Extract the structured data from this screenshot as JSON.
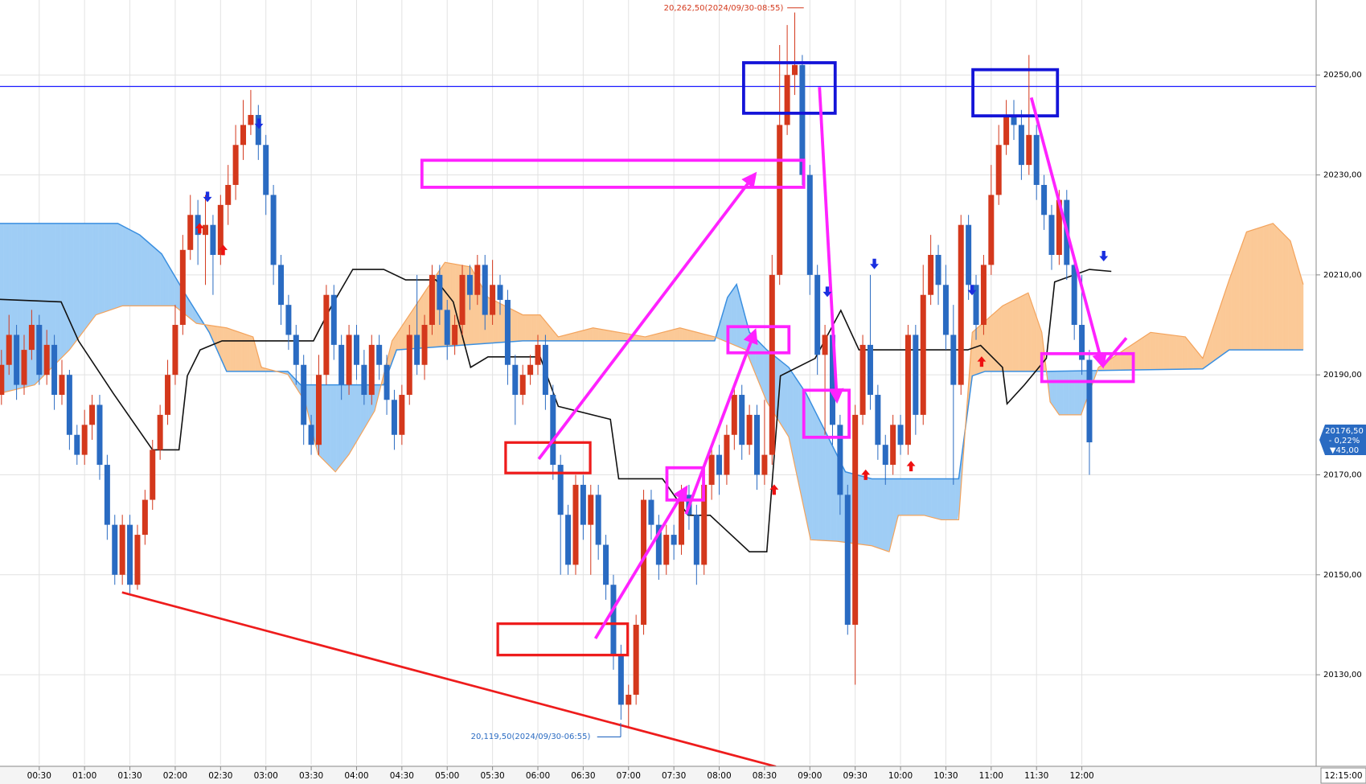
{
  "chart_data": {
    "type": "candlestick",
    "categories": [
      null,
      null,
      null,
      null,
      null,
      "00:30",
      null,
      null,
      null,
      null,
      null,
      "01:00",
      null,
      null,
      null,
      null,
      null,
      "01:30",
      null,
      null,
      null,
      null,
      null,
      "02:00",
      null,
      null,
      null,
      null,
      null,
      "02:30",
      null,
      null,
      null,
      null,
      null,
      "03:00",
      null,
      null,
      null,
      null,
      null,
      "03:30",
      null,
      null,
      null,
      null,
      null,
      "04:00",
      null,
      null,
      null,
      null,
      null,
      "04:30",
      null,
      null,
      null,
      null,
      null,
      "05:00",
      null,
      null,
      null,
      null,
      null,
      "05:30",
      null,
      null,
      null,
      null,
      null,
      "06:00",
      null,
      null,
      null,
      null,
      null,
      "06:30",
      null,
      null,
      null,
      null,
      null,
      "07:00",
      null,
      null,
      null,
      null,
      null,
      "07:30",
      null,
      null,
      null,
      null,
      null,
      "08:00",
      null,
      null,
      null,
      null,
      null,
      "08:30",
      null,
      null,
      null,
      null,
      null,
      "09:00",
      null,
      null,
      null,
      null,
      null,
      "09:30",
      null,
      null,
      null,
      null,
      null,
      "10:00",
      null,
      null,
      null,
      null,
      null,
      "10:30",
      null,
      null,
      null,
      null,
      null,
      "11:00",
      null,
      null,
      null,
      null,
      null,
      "11:30",
      null,
      null,
      null,
      null,
      null,
      "12:00",
      null
    ],
    "open": [
      20186,
      20192,
      20198,
      20188,
      20195,
      20200,
      20190,
      20196,
      20186,
      20190,
      20178,
      20174,
      20180,
      20184,
      20172,
      20160,
      20150,
      20160,
      20148,
      20158,
      20165,
      20175,
      20182,
      20190,
      20200,
      20215,
      20222,
      20218,
      20220,
      20214,
      20224,
      20228,
      20236,
      20240,
      20242,
      20236,
      20226,
      20212,
      20204,
      20198,
      20192,
      20180,
      20176,
      20190,
      20206,
      20196,
      20188,
      20198,
      20192,
      20186,
      20196,
      20192,
      20185,
      20178,
      20186,
      20198,
      20192,
      20200,
      20210,
      20203,
      20196,
      20200,
      20210,
      20206,
      20212,
      20202,
      20208,
      20205,
      20192,
      20186,
      20190,
      20192,
      20196,
      20186,
      20172,
      20162,
      20152,
      20168,
      20160,
      20166,
      20156,
      20148,
      20134,
      20124,
      20126,
      20140,
      20165,
      20160,
      20152,
      20158,
      20156,
      20166,
      20162,
      20152,
      20168,
      20174,
      20170,
      20178,
      20186,
      20176,
      20182,
      20170,
      20174,
      20210,
      20240,
      20250,
      20252,
      20230,
      20210,
      20194,
      20198,
      20180,
      20166,
      20140,
      20182,
      20196,
      20186,
      20176,
      20172,
      20180,
      20176,
      20198,
      20182,
      20206,
      20214,
      20208,
      20198,
      20188,
      20220,
      20208,
      20200,
      20212,
      20226,
      20236,
      20242,
      20240,
      20232,
      20238,
      20228,
      20222,
      20214,
      20225,
      20212,
      20200,
      20193
    ],
    "high": [
      20195,
      20202,
      20200,
      20198,
      20203,
      20202,
      20199,
      20198,
      20193,
      20191,
      20180,
      20183,
      20186,
      20186,
      20174,
      20162,
      20162,
      20162,
      20160,
      20167,
      20177,
      20184,
      20193,
      20204,
      20218,
      20226,
      20225,
      20226,
      20222,
      20226,
      20232,
      20240,
      20245,
      20247,
      20244,
      20238,
      20228,
      20214,
      20206,
      20200,
      20194,
      20182,
      20194,
      20208,
      20208,
      20198,
      20200,
      20200,
      20195,
      20198,
      20198,
      20194,
      20187,
      20188,
      20200,
      20210,
      20202,
      20212,
      20212,
      20205,
      20202,
      20212,
      20212,
      20214,
      20214,
      20213,
      20210,
      20207,
      20194,
      20192,
      20194,
      20198,
      20198,
      20188,
      20174,
      20164,
      20170,
      20170,
      20168,
      20168,
      20158,
      20150,
      20136,
      20128,
      20142,
      20167,
      20167,
      20162,
      20160,
      20160,
      20168,
      20168,
      20164,
      20170,
      20176,
      20176,
      20180,
      20188,
      20188,
      20184,
      20184,
      20185,
      20214,
      20256,
      20260,
      20262.5,
      20254,
      20232,
      20212,
      20200,
      20200,
      20182,
      20168,
      20184,
      20198,
      20210,
      20188,
      20178,
      20182,
      20182,
      20200,
      20200,
      20212,
      20218,
      20216,
      20212,
      20204,
      20222,
      20222,
      20210,
      20214,
      20232,
      20240,
      20245,
      20245,
      20243,
      20254,
      20240,
      20230,
      20224,
      20227,
      20227,
      20214,
      20210,
      20195
    ],
    "low": [
      20184,
      20190,
      20185,
      20186,
      20193,
      20188,
      20188,
      20183,
      20184,
      20175,
      20172,
      20172,
      20177,
      20169,
      20157,
      20148,
      20148,
      20146,
      20147,
      20156,
      20163,
      20173,
      20180,
      20188,
      20198,
      20213,
      20212,
      20208,
      20206,
      20212,
      20220,
      20225,
      20233,
      20238,
      20233,
      20222,
      20208,
      20200,
      20195,
      20188,
      20176,
      20174,
      20174,
      20188,
      20193,
      20185,
      20186,
      20189,
      20184,
      20184,
      20189,
      20182,
      20175,
      20176,
      20184,
      20190,
      20189,
      20198,
      20200,
      20193,
      20194,
      20198,
      20203,
      20204,
      20199,
      20200,
      20202,
      20188,
      20180,
      20184,
      20188,
      20190,
      20183,
      20169,
      20150,
      20150,
      20150,
      20157,
      20150,
      20153,
      20145,
      20131,
      20121,
      20119.5,
      20124,
      20138,
      20157,
      20149,
      20150,
      20153,
      20154,
      20159,
      20148,
      20150,
      20165,
      20166,
      20168,
      20175,
      20173,
      20174,
      20167,
      20168,
      20172,
      20208,
      20238,
      20246,
      20228,
      20206,
      20190,
      20178,
      20176,
      20162,
      20138,
      20128,
      20180,
      20183,
      20173,
      20168,
      20170,
      20174,
      20174,
      20178,
      20180,
      20204,
      20204,
      20195,
      20168,
      20186,
      20205,
      20197,
      20198,
      20210,
      20224,
      20234,
      20237,
      20229,
      20230,
      20225,
      20219,
      20211,
      20212,
      20209,
      20197,
      20190,
      20170
    ],
    "close": [
      20192,
      20198,
      20188,
      20195,
      20200,
      20190,
      20196,
      20186,
      20190,
      20178,
      20174,
      20180,
      20184,
      20172,
      20160,
      20150,
      20160,
      20148,
      20158,
      20165,
      20175,
      20182,
      20190,
      20200,
      20215,
      20222,
      20218,
      20220,
      20214,
      20224,
      20228,
      20236,
      20240,
      20242,
      20236,
      20226,
      20212,
      20204,
      20198,
      20192,
      20180,
      20176,
      20190,
      20206,
      20196,
      20188,
      20198,
      20192,
      20186,
      20196,
      20192,
      20185,
      20178,
      20186,
      20198,
      20192,
      20200,
      20210,
      20203,
      20196,
      20200,
      20210,
      20206,
      20212,
      20202,
      20208,
      20205,
      20192,
      20186,
      20190,
      20192,
      20196,
      20186,
      20172,
      20162,
      20152,
      20168,
      20160,
      20166,
      20156,
      20148,
      20134,
      20124,
      20126,
      20140,
      20165,
      20160,
      20152,
      20158,
      20156,
      20166,
      20162,
      20152,
      20168,
      20174,
      20170,
      20178,
      20186,
      20176,
      20182,
      20170,
      20174,
      20210,
      20240,
      20250,
      20252,
      20230,
      20210,
      20194,
      20198,
      20180,
      20166,
      20140,
      20182,
      20196,
      20186,
      20176,
      20172,
      20180,
      20176,
      20198,
      20182,
      20206,
      20214,
      20208,
      20198,
      20188,
      20220,
      20208,
      20200,
      20212,
      20226,
      20236,
      20242,
      20240,
      20232,
      20238,
      20228,
      20222,
      20214,
      20225,
      20212,
      20200,
      20193,
      20176.5
    ],
    "up_color": "#d4381c",
    "down_color": "#2a6bc2",
    "span_a": {
      "color": "#3a8fe0",
      "x": [
        -0.2,
        15.4,
        18.3,
        21.2,
        24.6,
        27.5,
        29.8,
        37.9,
        39.6,
        50.6,
        52.3,
        69.0,
        94.4,
        96.1,
        97.3,
        99.0,
        101.3,
        104.2,
        106.5,
        109.4,
        111.7,
        115.2,
        126.7,
        128.5,
        130.2,
        138.3,
        159.0,
        162.5,
        172.3
      ],
      "values": [
        20220.3,
        20220.3,
        20218.0,
        20214.2,
        20205.5,
        20198.5,
        20190.7,
        20190.7,
        20188.0,
        20188.0,
        20195.0,
        20196.8,
        20196.8,
        20205.5,
        20208.1,
        20198.5,
        20195.0,
        20191.5,
        20186.3,
        20177.6,
        20170.6,
        20169.2,
        20169.2,
        20189.8,
        20190.7,
        20190.7,
        20191.2,
        20195.0,
        20195.0
      ]
    },
    "span_b": {
      "color": "#f3a35c",
      "x": [
        -0.2,
        4.4,
        9.0,
        12.5,
        16.0,
        22.9,
        25.8,
        29.8,
        33.3,
        34.4,
        37.9,
        40.2,
        41.9,
        44.2,
        46.0,
        49.4,
        51.7,
        54.0,
        56.3,
        58.7,
        62.1,
        64.4,
        69.0,
        71.3,
        73.7,
        78.3,
        85.2,
        89.8,
        94.4,
        98.5,
        101.3,
        104.2,
        107.1,
        110.6,
        115.2,
        117.5,
        118.7,
        122.1,
        124.4,
        126.7,
        128.5,
        132.5,
        135.9,
        137.7,
        138.8,
        140.0,
        142.9,
        145.2,
        148.6,
        152.1,
        156.7,
        159.0,
        162.5,
        164.8,
        168.3,
        170.6,
        172.3
      ],
      "values": [
        20186.3,
        20188.0,
        20195.0,
        20202.0,
        20203.8,
        20203.8,
        20200.3,
        20199.4,
        20197.6,
        20191.5,
        20190.1,
        20184.6,
        20174.1,
        20170.6,
        20174.1,
        20182.8,
        20196.8,
        20202.0,
        20207.2,
        20212.5,
        20211.6,
        20205.5,
        20202.0,
        20202.0,
        20197.6,
        20199.4,
        20197.6,
        20199.4,
        20197.6,
        20195.0,
        20184.6,
        20177.6,
        20157.0,
        20156.7,
        20155.8,
        20154.6,
        20161.9,
        20161.9,
        20161.0,
        20161.0,
        20198.5,
        20203.8,
        20206.4,
        20198.5,
        20184.6,
        20182.0,
        20182.0,
        20191.5,
        20195.0,
        20198.5,
        20197.6,
        20193.3,
        20209.0,
        20218.6,
        20220.3,
        20216.8,
        20208.1
      ]
    },
    "cloud_up_color": "#9fcdf5",
    "cloud_down_color": "#fbc997",
    "base_line": {
      "color": "#111111",
      "x": [
        -0.2,
        7.9,
        10.2,
        14.8,
        20.0,
        23.5,
        24.6,
        26.3,
        29.2,
        41.3,
        43.7,
        46.5,
        50.6,
        53.5,
        57.5,
        59.8,
        62.1,
        64.4,
        71.3,
        73.7,
        80.6,
        81.7,
        87.5,
        90.9,
        93.8,
        99.0,
        101.3,
        103.1,
        107.7,
        111.1,
        113.5,
        127.9,
        129.6,
        132.5,
        133.1,
        135.4,
        138.3,
        139.4,
        144.0,
        146.9
      ],
      "values": [
        20205.1,
        20204.6,
        20196.8,
        20186.3,
        20175.0,
        20175.0,
        20189.8,
        20195.0,
        20196.8,
        20196.8,
        20203.8,
        20211.1,
        20211.1,
        20209.0,
        20209.0,
        20204.6,
        20191.5,
        20193.6,
        20193.6,
        20183.7,
        20181.1,
        20169.2,
        20169.2,
        20161.9,
        20161.9,
        20154.6,
        20154.6,
        20189.8,
        20193.3,
        20202.9,
        20195.0,
        20195.0,
        20195.9,
        20191.5,
        20184.2,
        20188.0,
        20193.3,
        20208.6,
        20211.1,
        20210.7
      ]
    },
    "hline": {
      "value": 20247.7,
      "color": "#1a1aff"
    },
    "ylim": [
      20112,
      20265
    ],
    "yticks": [
      {
        "value": 20130,
        "label": "20130,00"
      },
      {
        "value": 20150,
        "label": "20150,00"
      },
      {
        "value": 20170,
        "label": "20170,00"
      },
      {
        "value": 20190,
        "label": "20190,00"
      },
      {
        "value": 20210,
        "label": "20210,00"
      },
      {
        "value": 20230,
        "label": "20230,00"
      },
      {
        "value": 20250,
        "label": "20250,00"
      }
    ],
    "grid": true,
    "high_annotation": "20,262,50(2024/09/30-08:55)",
    "low_annotation": "20,119,50(2024/09/30-06:55)",
    "last_price_box": [
      "20176,50",
      "- 0,22%",
      "▼45,00"
    ],
    "cursor_time": "12:15:00"
  }
}
